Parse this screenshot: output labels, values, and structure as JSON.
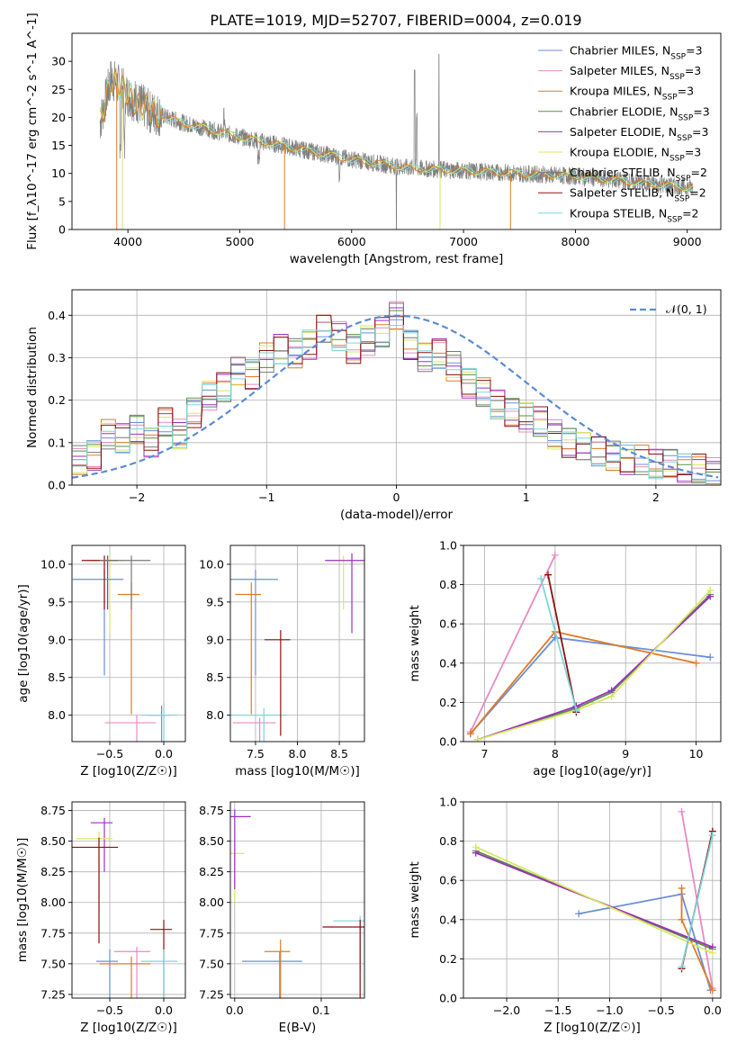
{
  "title": "PLATE=1019, MJD=52707, FIBERID=0004, z=0.019",
  "colors": [
    "#6b8fd9",
    "#e88ac4",
    "#e07b25",
    "#5c8f4a",
    "#9b30c0",
    "#d8e860",
    "#777777",
    "#8b1010",
    "#7dd6da"
  ],
  "panels": [
    {
      "id": "spectrum",
      "type": "line",
      "xlabel": "wavelength [Angstrom, rest frame]",
      "ylabel": "Flux [f_λ10^-17 erg cm^-2 s^-1 A^-1]",
      "xlim": [
        3500,
        9300
      ],
      "ylim": [
        0,
        35
      ],
      "xticks": [
        4000,
        5000,
        6000,
        7000,
        8000,
        9000
      ],
      "yticks": [
        0,
        5,
        10,
        15,
        20,
        25,
        30
      ],
      "legend_position": "top-right",
      "series": [
        {
          "name": "Chabrier MILES, N_SSP=3"
        },
        {
          "name": "Salpeter MILES, N_SSP=3"
        },
        {
          "name": "Kroupa MILES, N_SSP=3"
        },
        {
          "name": "Chabrier ELODIE, N_SSP=3"
        },
        {
          "name": "Salpeter ELODIE, N_SSP=3"
        },
        {
          "name": "Kroupa ELODIE, N_SSP=3"
        },
        {
          "name": "Chabrier STELIB, N_SSP=2"
        },
        {
          "name": "Salpeter STELIB, N_SSP=2"
        },
        {
          "name": "Kroupa STELIB, N_SSP=2"
        }
      ],
      "data_continuum": {
        "x": [
          3750,
          3850,
          4000,
          4200,
          4500,
          5000,
          5500,
          6000,
          6500,
          7000,
          7500,
          8000,
          8500,
          9000
        ],
        "y": [
          19,
          27,
          24,
          21,
          19,
          16.5,
          14.5,
          12.5,
          11,
          10.5,
          10,
          9.5,
          8.5,
          7.5
        ]
      },
      "grid": false
    },
    {
      "id": "residuals",
      "type": "histogram",
      "xlabel": "(data-model)/error",
      "ylabel": "Normed distribution",
      "xlim": [
        -2.5,
        2.5
      ],
      "ylim": [
        0,
        0.46
      ],
      "xticks": [
        -2,
        -1,
        0,
        1,
        2
      ],
      "yticks": [
        0.0,
        0.1,
        0.2,
        0.3,
        0.4
      ],
      "legend": "𝒩(0, 1)",
      "legend_position": "top-right",
      "hist_centers": [
        -2.44,
        -2.33,
        -2.22,
        -2.11,
        -2.0,
        -1.89,
        -1.78,
        -1.67,
        -1.56,
        -1.44,
        -1.33,
        -1.22,
        -1.11,
        -1.0,
        -0.89,
        -0.78,
        -0.67,
        -0.56,
        -0.44,
        -0.33,
        -0.22,
        -0.11,
        0.0,
        0.11,
        0.22,
        0.33,
        0.44,
        0.56,
        0.67,
        0.78,
        0.89,
        1.0,
        1.11,
        1.22,
        1.33,
        1.44,
        1.56,
        1.67,
        1.78,
        1.89,
        2.0,
        2.11,
        2.22,
        2.33,
        2.44
      ],
      "hist_values": [
        0.06,
        0.07,
        0.12,
        0.11,
        0.13,
        0.1,
        0.15,
        0.12,
        0.17,
        0.21,
        0.23,
        0.27,
        0.26,
        0.3,
        0.32,
        0.31,
        0.33,
        0.37,
        0.35,
        0.32,
        0.34,
        0.36,
        0.4,
        0.33,
        0.3,
        0.31,
        0.28,
        0.24,
        0.22,
        0.19,
        0.17,
        0.16,
        0.15,
        0.12,
        0.1,
        0.09,
        0.08,
        0.07,
        0.06,
        0.06,
        0.05,
        0.05,
        0.04,
        0.04,
        0.03
      ],
      "grid": true
    },
    {
      "id": "age_vs_Z",
      "type": "errorbar",
      "xlabel": "Z [log10(Z/Z☉)]",
      "ylabel": "age  [log10(age/yr)]",
      "xlim": [
        -0.85,
        0.2
      ],
      "ylim": [
        7.65,
        10.25
      ],
      "xticks": [
        -0.5,
        0.0
      ],
      "yticks": [
        8.0,
        8.5,
        9.0,
        9.5,
        10.0
      ],
      "points": [
        {
          "x": -0.52,
          "y": 10.05,
          "c": 4
        },
        {
          "x": -0.5,
          "y": 10.05,
          "c": 5
        },
        {
          "x": -0.55,
          "y": 9.8,
          "c": 0
        },
        {
          "x": -0.3,
          "y": 9.6,
          "c": 2
        },
        {
          "x": -0.55,
          "y": 10.05,
          "c": 7
        },
        {
          "x": -0.25,
          "y": 7.9,
          "c": 1
        },
        {
          "x": -0.02,
          "y": 8.0,
          "c": 0
        },
        {
          "x": 0.0,
          "y": 8.0,
          "c": 8
        },
        {
          "x": -0.3,
          "y": 10.05,
          "c": 6
        }
      ],
      "grid": true
    },
    {
      "id": "age_vs_mass",
      "type": "errorbar",
      "xlabel": "mass [log10(M/M☉)]",
      "ylabel": "",
      "xlim": [
        7.2,
        8.8
      ],
      "ylim": [
        7.65,
        10.25
      ],
      "xticks": [
        7.5,
        8.0,
        8.5
      ],
      "yticks": [
        8.0,
        8.5,
        9.0,
        9.5,
        10.0
      ],
      "points": [
        {
          "x": 8.55,
          "y": 10.05,
          "c": 5
        },
        {
          "x": 8.65,
          "y": 10.05,
          "c": 4
        },
        {
          "x": 7.5,
          "y": 9.8,
          "c": 0
        },
        {
          "x": 7.45,
          "y": 9.6,
          "c": 2
        },
        {
          "x": 7.55,
          "y": 7.9,
          "c": 1
        },
        {
          "x": 7.6,
          "y": 8.0,
          "c": 8
        },
        {
          "x": 7.8,
          "y": 9.0,
          "c": 7
        }
      ],
      "grid": true
    },
    {
      "id": "weight_vs_age",
      "type": "line",
      "xlabel": "age  [log10(age/yr)]",
      "ylabel": "mass weight",
      "xlim": [
        6.7,
        10.35
      ],
      "ylim": [
        0,
        1
      ],
      "xticks": [
        7,
        8,
        9,
        10
      ],
      "yticks": [
        0.0,
        0.2,
        0.4,
        0.6,
        0.8,
        1.0
      ],
      "series": [
        {
          "c": 0,
          "x": [
            6.8,
            8.0,
            10.2
          ],
          "y": [
            0.04,
            0.53,
            0.43
          ]
        },
        {
          "c": 1,
          "x": [
            6.8,
            8.0
          ],
          "y": [
            0.05,
            0.95
          ]
        },
        {
          "c": 2,
          "x": [
            6.8,
            8.0,
            10.0
          ],
          "y": [
            0.04,
            0.56,
            0.4
          ]
        },
        {
          "c": 3,
          "x": [
            6.9,
            8.3,
            8.8,
            10.2
          ],
          "y": [
            0.01,
            0.17,
            0.25,
            0.75
          ]
        },
        {
          "c": 4,
          "x": [
            6.9,
            8.3,
            8.8,
            10.2
          ],
          "y": [
            0.01,
            0.18,
            0.26,
            0.74
          ]
        },
        {
          "c": 5,
          "x": [
            6.9,
            8.3,
            8.8,
            10.2
          ],
          "y": [
            0.01,
            0.16,
            0.23,
            0.77
          ]
        },
        {
          "c": 7,
          "x": [
            7.9,
            8.3
          ],
          "y": [
            0.85,
            0.15
          ]
        },
        {
          "c": 8,
          "x": [
            7.8,
            8.3
          ],
          "y": [
            0.83,
            0.16
          ]
        }
      ],
      "grid": true
    },
    {
      "id": "mass_vs_Z",
      "type": "errorbar",
      "xlabel": "Z [log10(Z/Z☉)]",
      "ylabel": "mass [log10(M/M☉)]",
      "xlim": [
        -0.85,
        0.2
      ],
      "ylim": [
        7.22,
        8.82
      ],
      "xticks": [
        -0.5,
        0.0
      ],
      "yticks": [
        7.25,
        7.5,
        7.75,
        8.0,
        8.25,
        8.5,
        8.75
      ],
      "points": [
        {
          "x": -0.55,
          "y": 8.65,
          "c": 4
        },
        {
          "x": -0.6,
          "y": 8.52,
          "c": 5
        },
        {
          "x": -0.6,
          "y": 8.45,
          "c": 7
        },
        {
          "x": -0.5,
          "y": 7.52,
          "c": 0
        },
        {
          "x": -0.25,
          "y": 7.6,
          "c": 1
        },
        {
          "x": -0.3,
          "y": 7.5,
          "c": 2
        },
        {
          "x": 0.0,
          "y": 7.78,
          "c": 7
        },
        {
          "x": 0.0,
          "y": 7.52,
          "c": 8
        }
      ],
      "grid": true
    },
    {
      "id": "mass_vs_ebv",
      "type": "errorbar",
      "xlabel": "E(B-V)",
      "ylabel": "",
      "xlim": [
        -0.005,
        0.15
      ],
      "ylim": [
        7.22,
        8.82
      ],
      "xticks": [
        0.0,
        0.1
      ],
      "yticks": [
        7.25,
        7.5,
        7.75,
        8.0,
        8.25,
        8.5,
        8.75
      ],
      "points": [
        {
          "x": 0.0,
          "y": 8.4,
          "c": 5
        },
        {
          "x": 0.0,
          "y": 8.7,
          "c": 4
        },
        {
          "x": 0.052,
          "y": 7.52,
          "c": 0
        },
        {
          "x": 0.053,
          "y": 7.6,
          "c": 2
        },
        {
          "x": 0.145,
          "y": 7.85,
          "c": 8
        },
        {
          "x": 0.145,
          "y": 7.8,
          "c": 7
        }
      ],
      "grid": true
    },
    {
      "id": "weight_vs_Z",
      "type": "line",
      "xlabel": "Z [log10(Z/Z☉)]",
      "ylabel": "mass weight",
      "xlim": [
        -2.42,
        0.08
      ],
      "ylim": [
        0,
        1
      ],
      "xticks": [
        -2.0,
        -1.5,
        -1.0,
        -0.5,
        0.0
      ],
      "yticks": [
        0.0,
        0.2,
        0.4,
        0.6,
        0.8,
        1.0
      ],
      "series": [
        {
          "c": 0,
          "x": [
            -1.3,
            -0.3,
            -0.02
          ],
          "y": [
            0.43,
            0.53,
            0.04
          ]
        },
        {
          "c": 1,
          "x": [
            -0.3,
            0.0
          ],
          "y": [
            0.95,
            0.05
          ]
        },
        {
          "c": 2,
          "x": [
            -0.3,
            -0.3,
            0.0
          ],
          "y": [
            0.56,
            0.4,
            0.04
          ]
        },
        {
          "c": 3,
          "x": [
            -2.3,
            0.0
          ],
          "y": [
            0.75,
            0.25
          ]
        },
        {
          "c": 4,
          "x": [
            -2.3,
            0.0
          ],
          "y": [
            0.74,
            0.26
          ]
        },
        {
          "c": 5,
          "x": [
            -2.3,
            0.0
          ],
          "y": [
            0.77,
            0.23
          ]
        },
        {
          "c": 7,
          "x": [
            -0.3,
            0.0
          ],
          "y": [
            0.15,
            0.85
          ]
        },
        {
          "c": 8,
          "x": [
            -0.3,
            0.0
          ],
          "y": [
            0.16,
            0.83
          ]
        }
      ],
      "grid": true
    }
  ]
}
